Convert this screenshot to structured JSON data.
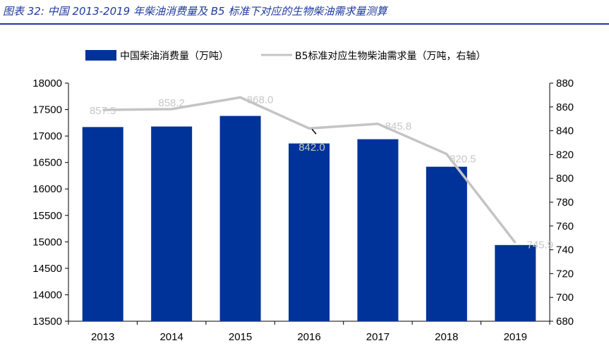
{
  "figure_title": "图表 32:  中国 2013-2019 年柴油消费量及 B5 标准下对应的生物柴油需求量测算",
  "chart_data": {
    "type": "bar+line",
    "categories": [
      "2013",
      "2014",
      "2015",
      "2016",
      "2017",
      "2018",
      "2019"
    ],
    "series": [
      {
        "name": "中国柴油消费量（万吨）",
        "type": "bar",
        "axis": "left",
        "color": "#003399",
        "values": [
          17170,
          17180,
          17380,
          16860,
          16940,
          16420,
          14940
        ]
      },
      {
        "name": "B5标准对应生物柴油需求量（万吨，右轴）",
        "type": "line",
        "axis": "right",
        "color": "#c4c4c4",
        "values": [
          857.5,
          858.2,
          868.0,
          842.0,
          845.8,
          820.5,
          745.9
        ],
        "labels": [
          "857.5",
          "858.2",
          "868.0",
          "842.0",
          "845.8",
          "820.5",
          "745.9"
        ]
      }
    ],
    "y_left": {
      "min": 13500,
      "max": 18000,
      "step": 500,
      "ticks": [
        "13500",
        "14000",
        "14500",
        "15000",
        "15500",
        "16000",
        "16500",
        "17000",
        "17500",
        "18000"
      ]
    },
    "y_right": {
      "min": 680,
      "max": 880,
      "step": 20,
      "ticks": [
        "680",
        "700",
        "720",
        "740",
        "760",
        "780",
        "800",
        "820",
        "840",
        "860",
        "880"
      ]
    },
    "legend_position": "top-center"
  }
}
